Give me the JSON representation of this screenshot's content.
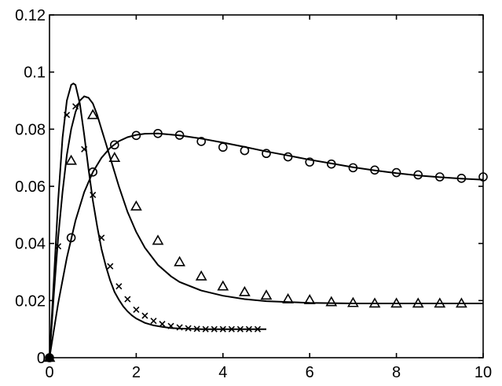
{
  "chart_data": {
    "type": "line",
    "title": "",
    "xlabel": "",
    "ylabel": "",
    "xlim": [
      0,
      10
    ],
    "ylim": [
      0,
      0.12
    ],
    "grid": false,
    "x_ticks": [
      "0",
      "2",
      "4",
      "6",
      "8",
      "10"
    ],
    "y_ticks": [
      "0",
      "0.02",
      "0.04",
      "0.06",
      "0.08",
      "0.1",
      "0.12"
    ],
    "x_tick_values": [
      0,
      2,
      4,
      6,
      8,
      10
    ],
    "y_tick_values": [
      0,
      0.02,
      0.04,
      0.06,
      0.08,
      0.1,
      0.12
    ],
    "series": [
      {
        "marker": "x",
        "curve": {
          "x": [
            0,
            0.1,
            0.2,
            0.3,
            0.4,
            0.5,
            0.55,
            0.6,
            0.7,
            0.8,
            0.9,
            1.0,
            1.1,
            1.2,
            1.3,
            1.4,
            1.5,
            1.6,
            1.7,
            1.8,
            1.9,
            2.0,
            2.2,
            2.4,
            2.6,
            2.8,
            3.0,
            3.5,
            4.0,
            4.5,
            5.0
          ],
          "y": [
            0,
            0.027,
            0.055,
            0.077,
            0.09,
            0.0955,
            0.096,
            0.0955,
            0.089,
            0.078,
            0.066,
            0.055,
            0.046,
            0.038,
            0.032,
            0.027,
            0.023,
            0.0203,
            0.018,
            0.0162,
            0.0148,
            0.0137,
            0.0122,
            0.0113,
            0.0108,
            0.0104,
            0.0102,
            0.01,
            0.01,
            0.01,
            0.01
          ]
        },
        "points": {
          "x": [
            0,
            0.2,
            0.4,
            0.6,
            0.8,
            1.0,
            1.2,
            1.4,
            1.6,
            1.8,
            2.0,
            2.2,
            2.4,
            2.6,
            2.8,
            3.0,
            3.2,
            3.4,
            3.6,
            3.8,
            4.0,
            4.2,
            4.4,
            4.6,
            4.8
          ],
          "y": [
            0,
            0.039,
            0.085,
            0.088,
            0.073,
            0.057,
            0.042,
            0.032,
            0.025,
            0.0205,
            0.0168,
            0.0147,
            0.0129,
            0.0118,
            0.0111,
            0.0106,
            0.0103,
            0.0101,
            0.01,
            0.01,
            0.01,
            0.01,
            0.01,
            0.01,
            0.01
          ]
        }
      },
      {
        "marker": "triangle",
        "curve": {
          "x": [
            0,
            0.1,
            0.2,
            0.3,
            0.4,
            0.5,
            0.6,
            0.7,
            0.8,
            0.9,
            1.0,
            1.1,
            1.2,
            1.3,
            1.4,
            1.5,
            1.6,
            1.8,
            2.0,
            2.2,
            2.5,
            2.8,
            3.0,
            3.5,
            4.0,
            4.5,
            5.0,
            6.0,
            7.0,
            8.0,
            9.0,
            10.0
          ],
          "y": [
            0,
            0.022,
            0.042,
            0.058,
            0.071,
            0.08,
            0.086,
            0.09,
            0.0915,
            0.091,
            0.089,
            0.085,
            0.08,
            0.075,
            0.07,
            0.065,
            0.06,
            0.051,
            0.044,
            0.0385,
            0.0325,
            0.0285,
            0.0265,
            0.0235,
            0.0217,
            0.0205,
            0.0198,
            0.0192,
            0.019,
            0.019,
            0.019,
            0.019
          ]
        },
        "points": {
          "x": [
            0,
            0.5,
            1.0,
            1.5,
            2.0,
            2.5,
            3.0,
            3.5,
            4.0,
            4.5,
            5.0,
            5.5,
            6.0,
            6.5,
            7.0,
            7.5,
            8.0,
            8.5,
            9.0,
            9.5
          ],
          "y": [
            0,
            0.069,
            0.085,
            0.07,
            0.053,
            0.041,
            0.0335,
            0.0285,
            0.025,
            0.023,
            0.0218,
            0.0205,
            0.0202,
            0.0195,
            0.0192,
            0.019,
            0.019,
            0.019,
            0.019,
            0.019
          ]
        }
      },
      {
        "marker": "circle",
        "curve": {
          "x": [
            0,
            0.2,
            0.4,
            0.6,
            0.8,
            1.0,
            1.2,
            1.4,
            1.6,
            1.8,
            2.0,
            2.2,
            2.5,
            2.8,
            3.0,
            3.5,
            4.0,
            4.5,
            5.0,
            5.5,
            6.0,
            6.5,
            7.0,
            7.5,
            8.0,
            8.5,
            9.0,
            9.5,
            10.0
          ],
          "y": [
            0,
            0.019,
            0.035,
            0.048,
            0.058,
            0.065,
            0.07,
            0.0735,
            0.0758,
            0.0772,
            0.078,
            0.0784,
            0.0785,
            0.0781,
            0.0778,
            0.0767,
            0.0753,
            0.0738,
            0.0722,
            0.0708,
            0.0693,
            0.068,
            0.0667,
            0.0656,
            0.0646,
            0.0638,
            0.0632,
            0.0627,
            0.0623
          ]
        },
        "points": {
          "x": [
            0,
            0.5,
            1.0,
            1.5,
            2.0,
            2.5,
            3.0,
            3.5,
            4.0,
            4.5,
            5.0,
            5.5,
            6.0,
            6.5,
            7.0,
            7.5,
            8.0,
            8.5,
            9.0,
            9.5,
            10.0
          ],
          "y": [
            0,
            0.042,
            0.065,
            0.0745,
            0.0778,
            0.0785,
            0.0779,
            0.0757,
            0.0737,
            0.0725,
            0.0715,
            0.0703,
            0.0685,
            0.0678,
            0.0665,
            0.0657,
            0.0648,
            0.064,
            0.0633,
            0.0628,
            0.0633
          ]
        }
      }
    ]
  }
}
